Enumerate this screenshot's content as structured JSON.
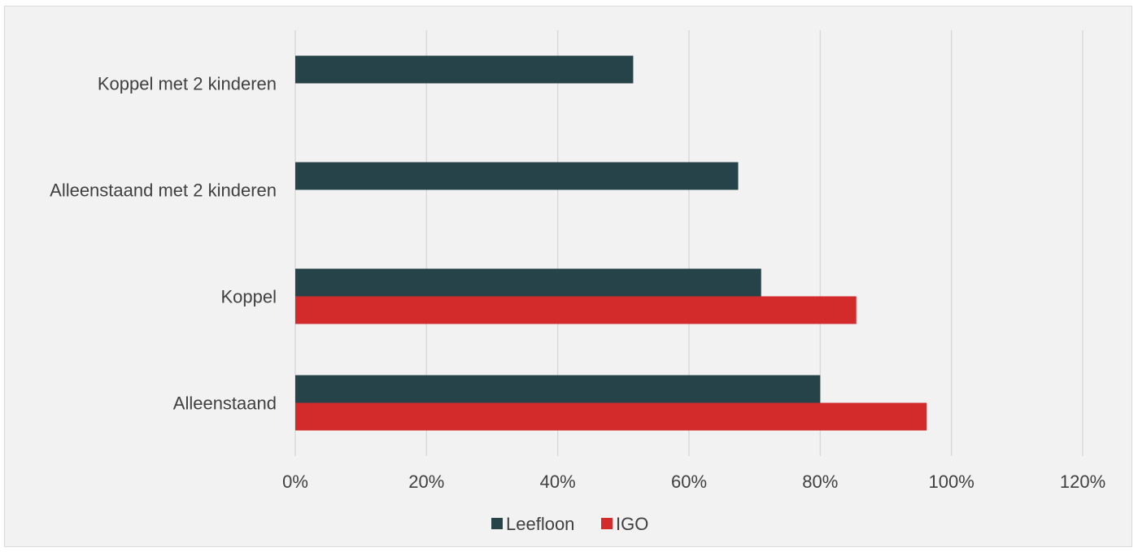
{
  "chart_data": {
    "type": "bar",
    "orientation": "horizontal",
    "categories": [
      "Alleenstaand",
      "Koppel",
      "Alleenstaand met 2 kinderen",
      "Koppel met 2 kinderen"
    ],
    "series": [
      {
        "name": "Leefloon",
        "color": "#26434a",
        "values": [
          80,
          71,
          67.5,
          51.5
        ]
      },
      {
        "name": "IGO",
        "color": "#d32b2b",
        "values": [
          96.2,
          85.5,
          null,
          null
        ]
      }
    ],
    "x_ticks": [
      "0%",
      "20%",
      "40%",
      "60%",
      "80%",
      "100%",
      "120%"
    ],
    "xlim": [
      0,
      120
    ],
    "grid": true,
    "legend": "bottom",
    "title": "",
    "xlabel": "",
    "ylabel": ""
  }
}
